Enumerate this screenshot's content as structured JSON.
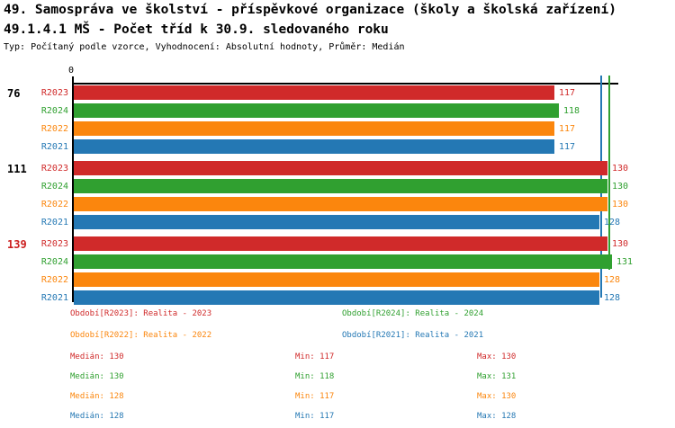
{
  "header": {
    "title1": "49. Samospráva ve školství - příspěvkové organizace (školy a školská zařízení)",
    "title2": "49.1.4.1 MŠ - Počet tříd k 30.9. sledovaného roku",
    "meta": "Typ: Počítaný podle vzorce, Vyhodnocení: Absolutní hodnoty, Průměr: Medián"
  },
  "colors": {
    "red": "#d02a2a",
    "green": "#30a030",
    "orange": "#fb860d",
    "blue": "#2478b4",
    "black": "#000000",
    "category_red": "#cc1f1f"
  },
  "chart_data": {
    "type": "bar",
    "orientation": "horizontal-grouped",
    "zero_label": "0",
    "xlim": [
      0,
      132
    ],
    "categories": [
      "76",
      "111",
      "139"
    ],
    "category_color_keys": [
      "black",
      "black",
      "category_red"
    ],
    "series": [
      {
        "name": "R2023",
        "color_key": "red",
        "values": [
          117,
          130,
          130
        ]
      },
      {
        "name": "R2024",
        "color_key": "green",
        "values": [
          118,
          130,
          131
        ]
      },
      {
        "name": "R2022",
        "color_key": "orange",
        "values": [
          117,
          130,
          128
        ]
      },
      {
        "name": "R2021",
        "color_key": "blue",
        "values": [
          117,
          128,
          128
        ]
      }
    ],
    "median_lines": [
      {
        "color_key": "blue",
        "value": 128
      },
      {
        "color_key": "green",
        "value": 130
      }
    ]
  },
  "legend": [
    {
      "label": "Období[R2023]: Realita - 2023",
      "color_key": "red"
    },
    {
      "label": "Období[R2024]: Realita - 2024",
      "color_key": "green"
    },
    {
      "label": "Období[R2022]: Realita - 2022",
      "color_key": "orange"
    },
    {
      "label": "Období[R2021]: Realita - 2021",
      "color_key": "blue"
    }
  ],
  "stats_labels": {
    "median": "Medián",
    "min": "Min",
    "max": "Max"
  },
  "stats": [
    {
      "color_key": "red",
      "median": 130,
      "min": 117,
      "max": 130
    },
    {
      "color_key": "green",
      "median": 130,
      "min": 118,
      "max": 131
    },
    {
      "color_key": "orange",
      "median": 128,
      "min": 117,
      "max": 130
    },
    {
      "color_key": "blue",
      "median": 128,
      "min": 117,
      "max": 128
    }
  ]
}
